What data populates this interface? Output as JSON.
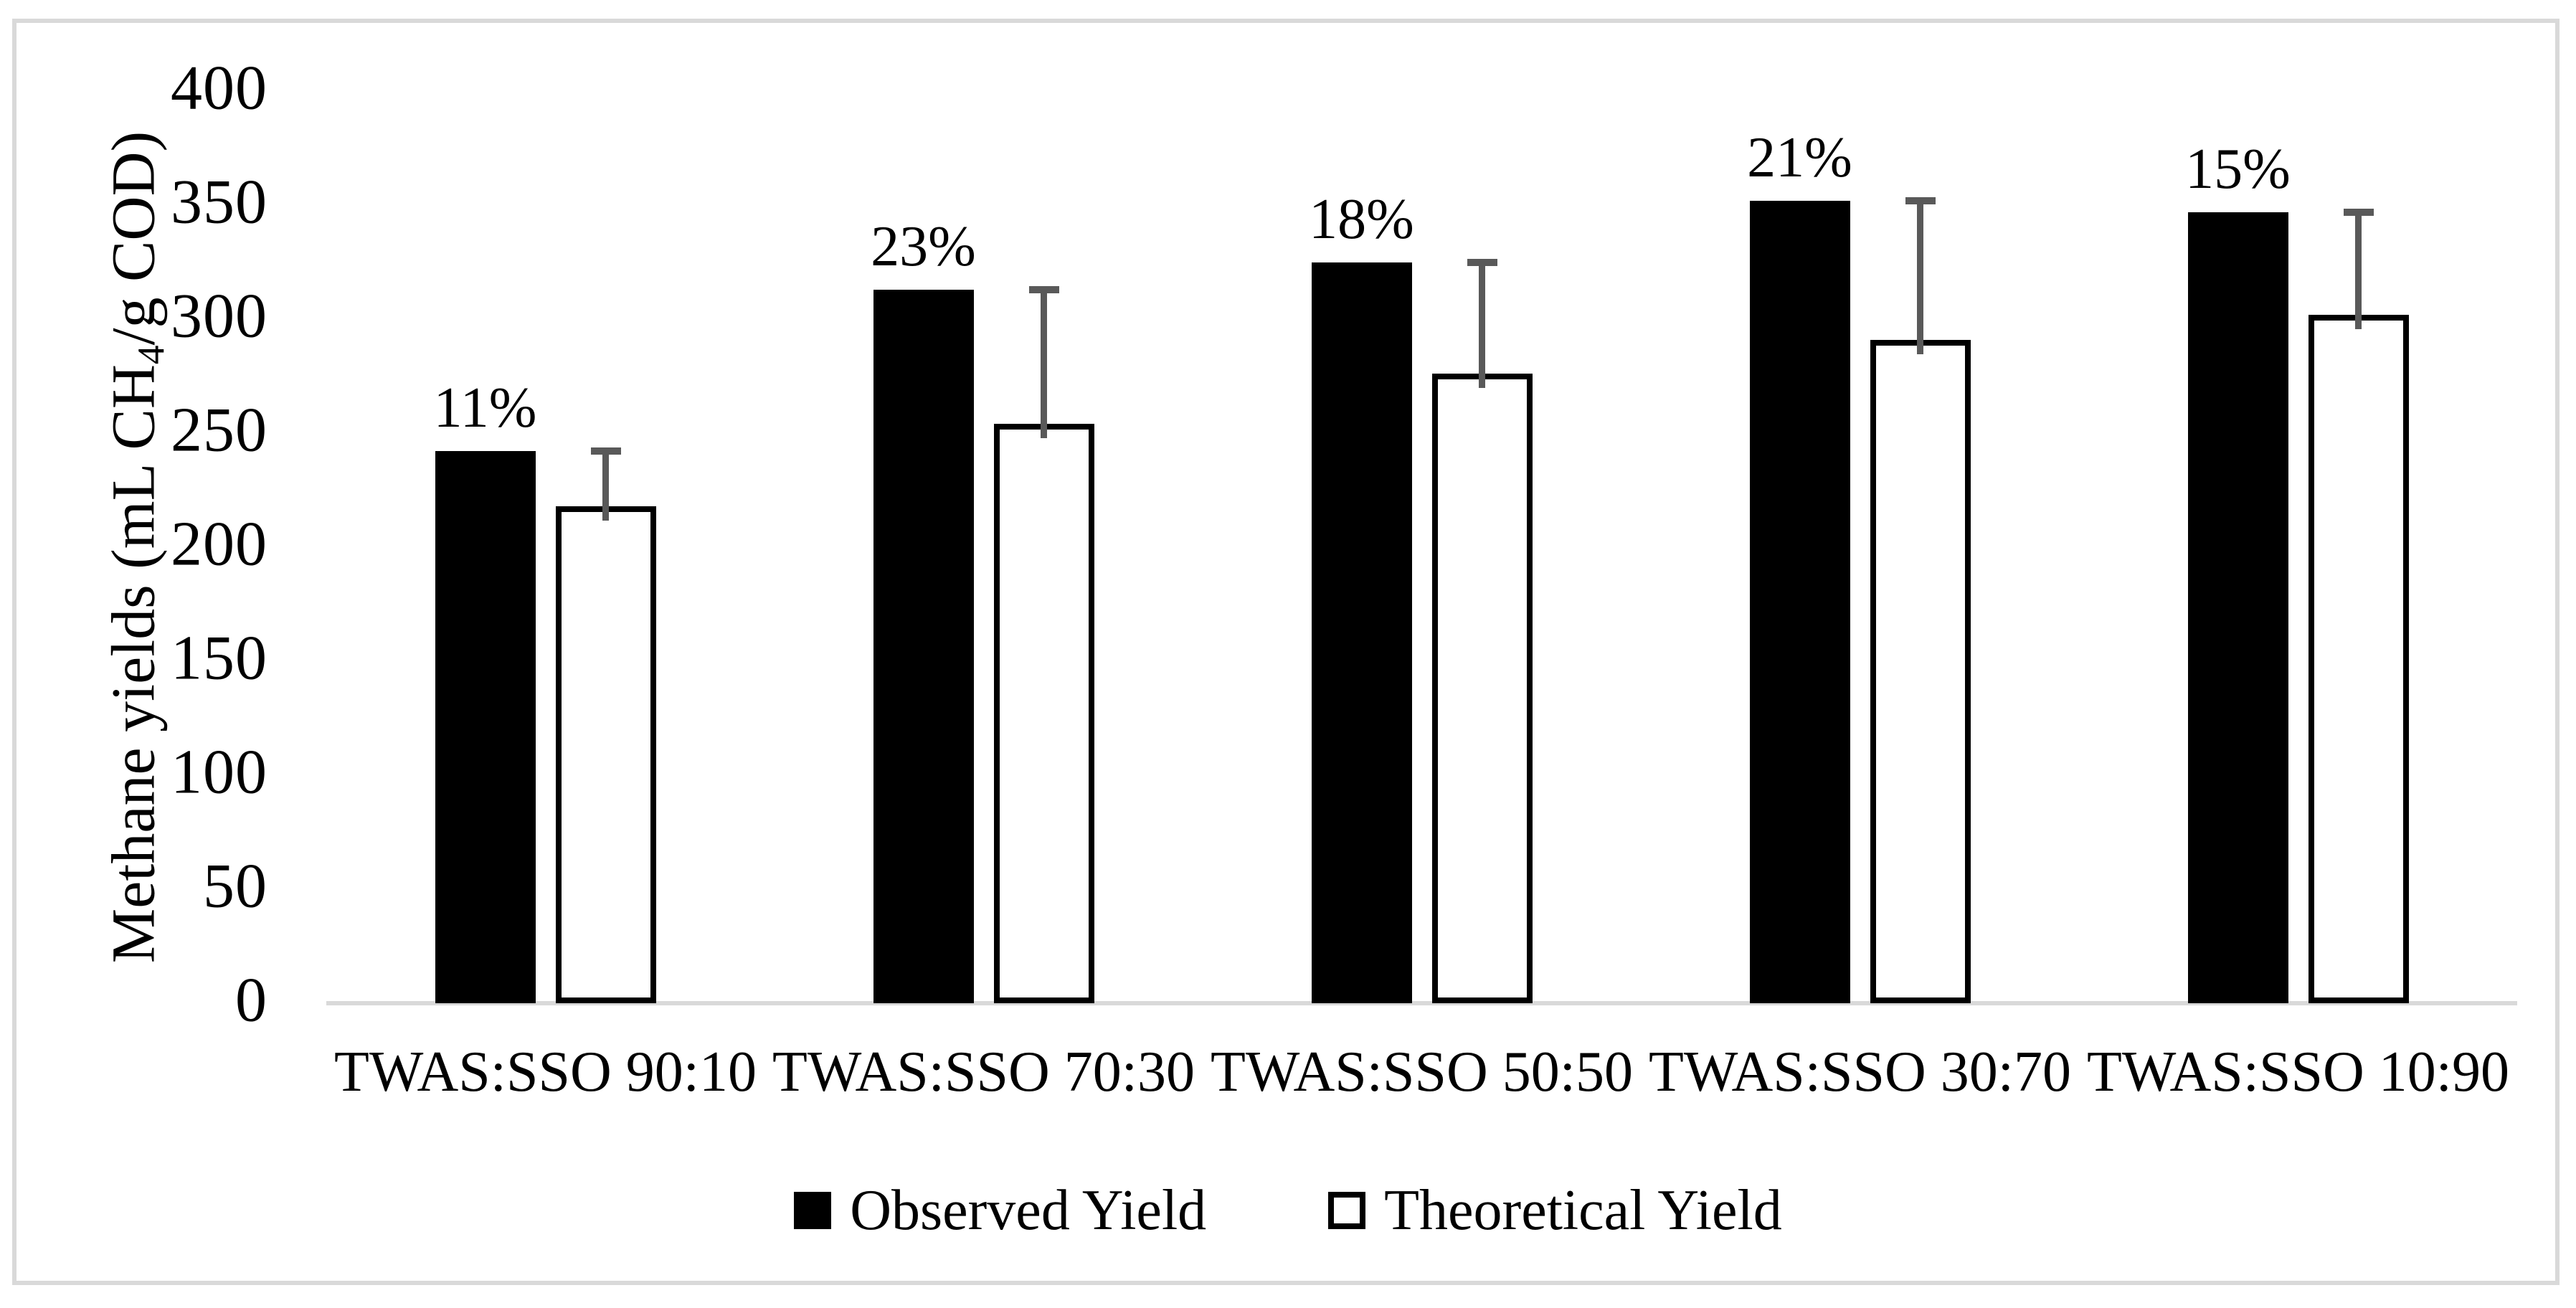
{
  "figure": {
    "background": "#ffffff",
    "border_color": "#d9d9d9"
  },
  "chart_data": {
    "type": "bar",
    "title": "",
    "xlabel": "",
    "ylabel": "Methane yields (mL CH4/g COD)",
    "ylabel_parts": {
      "prefix": "Methane yields (mL CH",
      "subscript": "4",
      "suffix": "/g COD)"
    },
    "categories": [
      "TWAS:SSO 90:10",
      "TWAS:SSO 70:30",
      "TWAS:SSO 50:50",
      "TWAS:SSO 30:70",
      "TWAS:SSO 10:90"
    ],
    "series": [
      {
        "name": "Observed Yield",
        "color": "#000000",
        "values": [
          242,
          313,
          325,
          352,
          347
        ]
      },
      {
        "name": "Theoretical Yield",
        "color": "#ffffff",
        "border_color": "#000000",
        "values": [
          218,
          254,
          276,
          291,
          302
        ],
        "error_plus": [
          24,
          59,
          49,
          61,
          45
        ]
      }
    ],
    "group_labels": [
      "11%",
      "23%",
      "18%",
      "21%",
      "15%"
    ],
    "yticks": [
      0,
      50,
      100,
      150,
      200,
      250,
      300,
      350,
      400
    ],
    "ylim": [
      0,
      400
    ],
    "grid": false,
    "legend_position": "bottom",
    "error_bar_color": "#595959",
    "axis_line_color": "#d9d9d9"
  }
}
